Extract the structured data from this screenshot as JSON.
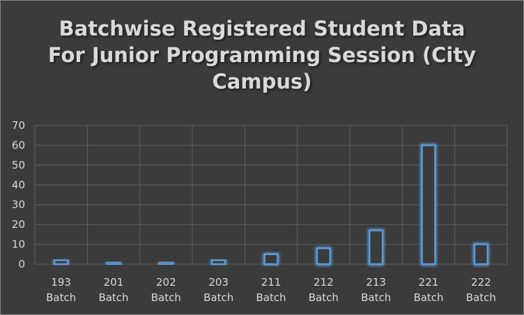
{
  "chart_data": {
    "type": "bar",
    "title_lines": [
      "Batchwise Registered Student Data",
      "For Junior Programming Session (City",
      "Campus)"
    ],
    "categories": [
      [
        "193",
        "Batch"
      ],
      [
        "201",
        "Batch"
      ],
      [
        "202",
        "Batch"
      ],
      [
        "203",
        "Batch"
      ],
      [
        "211",
        "Batch"
      ],
      [
        "212",
        "Batch"
      ],
      [
        "213",
        "Batch"
      ],
      [
        "221",
        "Batch"
      ],
      [
        "222",
        "Batch"
      ]
    ],
    "values": [
      2,
      1,
      1,
      2,
      5,
      8,
      17,
      60,
      10
    ],
    "ylim": [
      0,
      70
    ],
    "yticks": [
      0,
      10,
      20,
      30,
      40,
      50,
      60,
      70
    ],
    "grid": true,
    "xlabel": "",
    "ylabel": "",
    "colors": {
      "background": "#3b3b3b",
      "bar_fill": "#3b3b3b",
      "bar_outline": "#5b9bd5",
      "bar_glow": "#5b9bd5",
      "grid": "#5e5e5e",
      "text": "#d9d9d9"
    }
  }
}
